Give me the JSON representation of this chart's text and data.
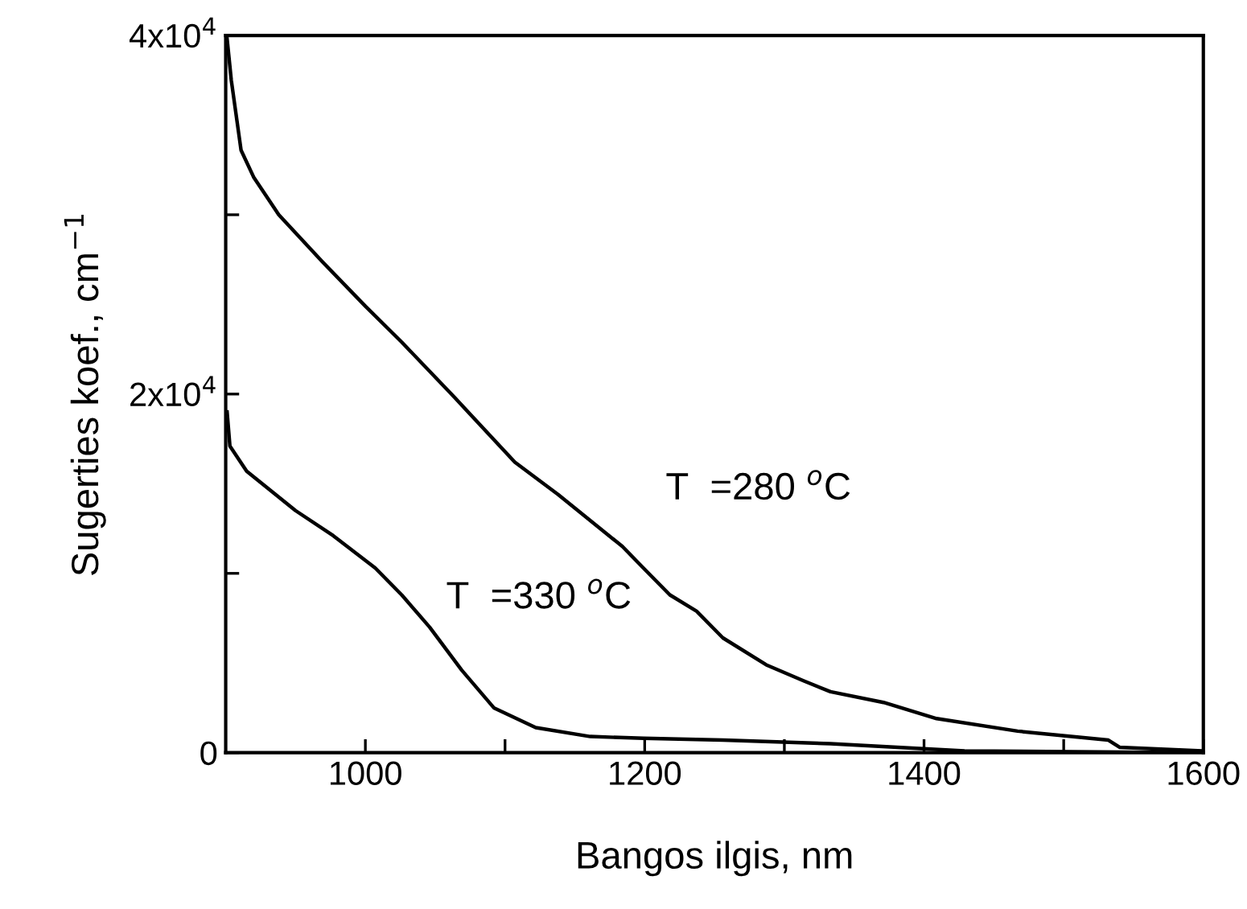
{
  "chart_data": {
    "type": "line",
    "xlabel": "Bangos ilgis, nm",
    "ylabel": "Sugerties koef., cm$^{−1}$",
    "xlim": [
      900,
      1600
    ],
    "ylim": [
      0,
      40000
    ],
    "xticks": [
      {
        "value": 1000,
        "label": "1000"
      },
      {
        "value": 1100,
        "label": null
      },
      {
        "value": 1200,
        "label": "1200"
      },
      {
        "value": 1300,
        "label": null
      },
      {
        "value": 1400,
        "label": "1400"
      },
      {
        "value": 1500,
        "label": null
      },
      {
        "value": 1600,
        "label": "1600"
      }
    ],
    "yticks": [
      {
        "value": 0,
        "label": "0"
      },
      {
        "value": 10000,
        "label": null
      },
      {
        "value": 20000,
        "label": "2x10$^{4}$"
      },
      {
        "value": 30000,
        "label": null
      },
      {
        "value": 40000,
        "label": "4x10$^{4}$"
      }
    ],
    "grid": false,
    "marker": "none",
    "line_style": "solid",
    "series": [
      {
        "name": "T  =280 $^{o}$C",
        "color": "#000000",
        "x": [
          901,
          904,
          911,
          920,
          938,
          969,
          1000,
          1026,
          1064,
          1107,
          1138,
          1184,
          1199,
          1218,
          1237,
          1256,
          1287,
          1314,
          1333,
          1371,
          1409,
          1467,
          1532,
          1540,
          1598
        ],
        "values": [
          39800,
          37500,
          33600,
          32100,
          30000,
          27400,
          24900,
          22900,
          19800,
          16200,
          14400,
          11500,
          10300,
          8800,
          7900,
          6400,
          4900,
          4000,
          3400,
          2800,
          1900,
          1200,
          700,
          300,
          100
        ]
      },
      {
        "name": "T  =330 $^{o}$C",
        "color": "#000000",
        "x": [
          901,
          903,
          915,
          950,
          977,
          1007,
          1026,
          1046,
          1069,
          1092,
          1122,
          1161,
          1199,
          1256,
          1333,
          1429,
          1598
        ],
        "values": [
          19000,
          17100,
          15700,
          13500,
          12100,
          10300,
          8800,
          7000,
          4600,
          2500,
          1400,
          900,
          800,
          700,
          500,
          100,
          0
        ]
      }
    ]
  }
}
